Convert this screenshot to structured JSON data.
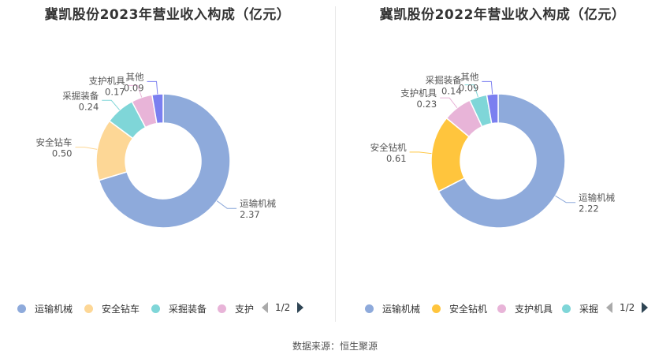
{
  "chart_data": [
    {
      "type": "pie",
      "title": "冀凯股份2023年营业收入构成（亿元）",
      "unit": "亿元",
      "slices": [
        {
          "name": "运输机械",
          "value": 2.37,
          "color": "#8eaadb"
        },
        {
          "name": "安全钻车",
          "value": 0.5,
          "color": "#fdd796"
        },
        {
          "name": "采掘装备",
          "value": 0.24,
          "color": "#7fd6d8"
        },
        {
          "name": "支护机具",
          "value": 0.17,
          "color": "#e8b4d8"
        },
        {
          "name": "其他",
          "value": 0.09,
          "color": "#7b7ff0"
        }
      ],
      "value_labels": [
        "2.37",
        "0.50",
        "0.24",
        "0.17",
        "0.09"
      ],
      "legend": {
        "placement": "bottom",
        "items": [
          {
            "name": "运输机械",
            "color": "#8eaadb"
          },
          {
            "name": "安全钻车",
            "color": "#fdd796"
          },
          {
            "name": "采掘装备",
            "color": "#7fd6d8"
          },
          {
            "name": "支护",
            "color": "#e8b4d8"
          }
        ],
        "page": "1/2"
      }
    },
    {
      "type": "pie",
      "title": "冀凯股份2022年营业收入构成（亿元）",
      "unit": "亿元",
      "slices": [
        {
          "name": "运输机械",
          "value": 2.22,
          "color": "#8eaadb"
        },
        {
          "name": "安全钻机",
          "value": 0.61,
          "color": "#ffc53d"
        },
        {
          "name": "支护机具",
          "value": 0.23,
          "color": "#e8b4d8"
        },
        {
          "name": "采掘装备",
          "value": 0.14,
          "color": "#7fd6d8"
        },
        {
          "name": "其他",
          "value": 0.09,
          "color": "#7b7ff0"
        }
      ],
      "value_labels": [
        "2.22",
        "0.61",
        "0.23",
        "0.14",
        "0.09"
      ],
      "legend": {
        "placement": "bottom",
        "items": [
          {
            "name": "运输机械",
            "color": "#8eaadb"
          },
          {
            "name": "安全钻机",
            "color": "#ffc53d"
          },
          {
            "name": "支护机具",
            "color": "#e8b4d8"
          },
          {
            "name": "采掘",
            "color": "#7fd6d8"
          }
        ],
        "page": "1/2"
      }
    }
  ],
  "footer": {
    "source": "数据来源：恒生聚源"
  }
}
